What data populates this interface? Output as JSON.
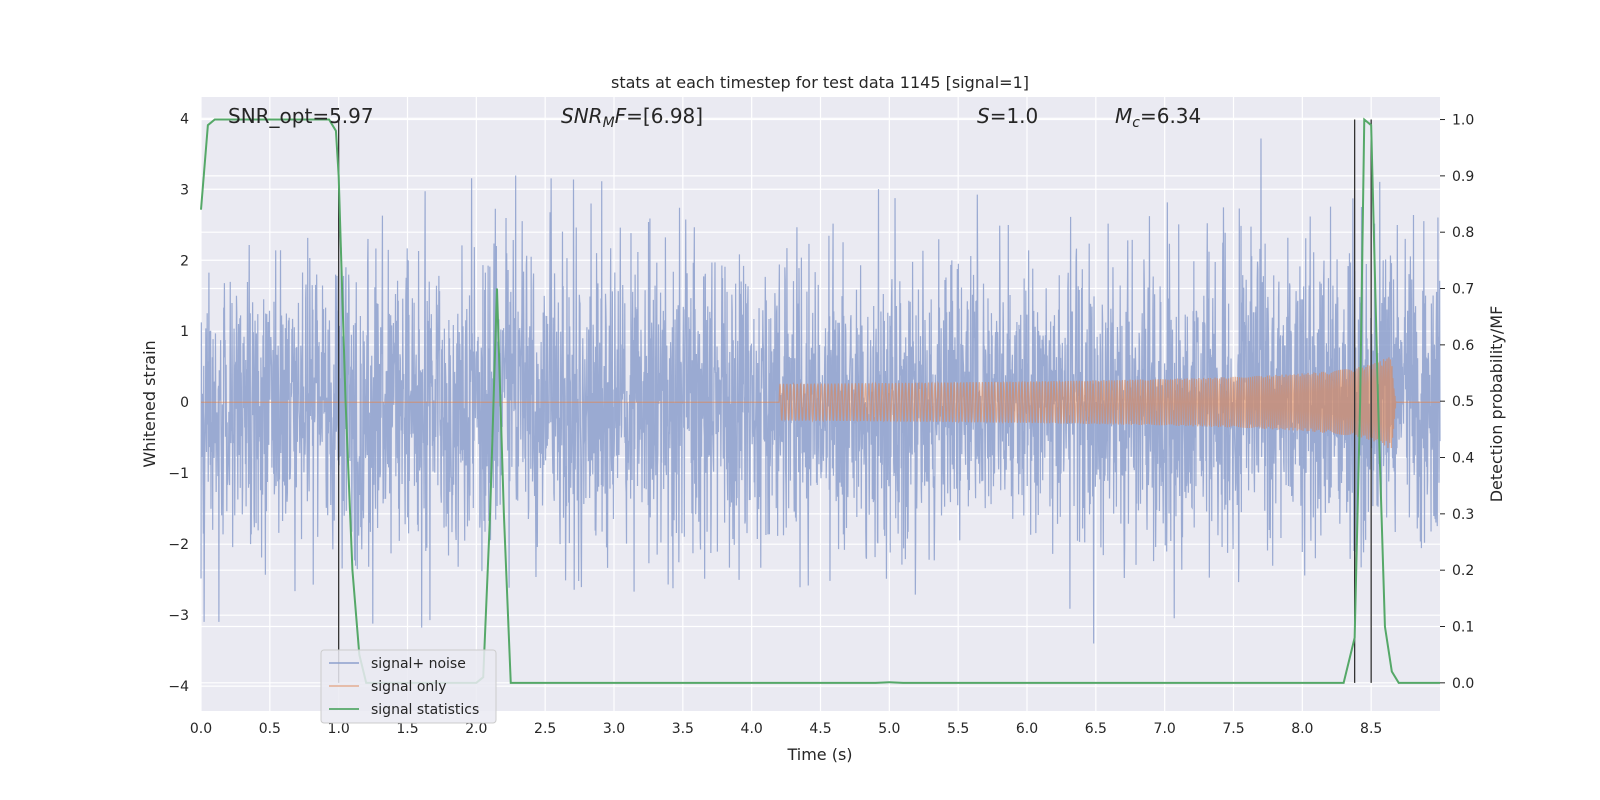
{
  "chart_data": {
    "type": "line",
    "title": "stats at each timestep for test data 1145 [signal=1]",
    "xlabel": "Time (s)",
    "ylabel_left": "Whitened strain",
    "ylabel_right": "Detection probability/MF",
    "xlim": [
      0.0,
      9.0
    ],
    "ylim_left": [
      -4.35,
      4.3
    ],
    "ylim_right": [
      -0.05,
      1.04
    ],
    "x_ticks": [
      "0.0",
      "0.5",
      "1.0",
      "1.5",
      "2.0",
      "2.5",
      "3.0",
      "3.5",
      "4.0",
      "4.5",
      "5.0",
      "5.5",
      "6.0",
      "6.5",
      "7.0",
      "7.5",
      "8.0",
      "8.5"
    ],
    "y_ticks_left": [
      "4",
      "3",
      "2",
      "1",
      "0",
      "−1",
      "−2",
      "−3",
      "−4"
    ],
    "y_ticks_right": [
      "1.0",
      "0.9",
      "0.8",
      "0.7",
      "0.6",
      "0.5",
      "0.4",
      "0.3",
      "0.2",
      "0.1",
      "0.0"
    ],
    "grid": true,
    "legend_position": "lower-left",
    "annotations": {
      "snr_opt": "SNR_opt=5.97",
      "snr_mf_var": "SNR",
      "snr_mf_sub": "M",
      "snr_mf_var2": "F",
      "snr_mf_rest": "=[6.98]",
      "s_var": "S",
      "s_rest": "=1.0",
      "mc_var": "M",
      "mc_sub": "c",
      "mc_rest": "=6.34"
    },
    "series": [
      {
        "name": "signal+ noise",
        "color": "#8c9fcc",
        "description_values": "whitened noise, roughly uniform amplitude",
        "envelope": {
          "typical_abs": 1.7,
          "max_abs": 4.0
        }
      },
      {
        "name": "signal only",
        "color": "#dd8452",
        "chirp": {
          "start": 4.2,
          "merger": 8.65,
          "end": 8.68,
          "peak_amplitude": 0.65
        }
      },
      {
        "name": "signal statistics",
        "color": "#55a868",
        "x": [
          0.0,
          0.05,
          0.1,
          0.2,
          0.3,
          0.4,
          0.5,
          0.6,
          0.7,
          0.8,
          0.9,
          0.93,
          0.98,
          1.0,
          1.05,
          1.1,
          1.15,
          1.2,
          1.5,
          1.8,
          1.9,
          2.0,
          2.05,
          2.1,
          2.15,
          2.2,
          2.25,
          2.4,
          3.0,
          4.0,
          4.9,
          5.0,
          5.1,
          6.0,
          7.0,
          8.0,
          8.3,
          8.38,
          8.42,
          8.45,
          8.5,
          8.55,
          8.6,
          8.65,
          8.7,
          9.0
        ],
        "values": [
          0.84,
          0.99,
          1.0,
          1.0,
          1.0,
          1.0,
          1.0,
          1.0,
          1.0,
          1.0,
          1.0,
          1.0,
          0.98,
          0.9,
          0.5,
          0.2,
          0.05,
          0.0,
          0.0,
          0.0,
          0.0,
          0.0,
          0.01,
          0.3,
          0.7,
          0.3,
          0.0,
          0.0,
          0.0,
          0.0,
          0.0,
          0.001,
          0.0,
          0.0,
          0.0,
          0.0,
          0.0,
          0.08,
          0.5,
          1.0,
          0.99,
          0.5,
          0.1,
          0.02,
          0.0,
          0.0
        ]
      }
    ],
    "vertical_markers_x": [
      1.0,
      8.38,
      8.5
    ]
  }
}
